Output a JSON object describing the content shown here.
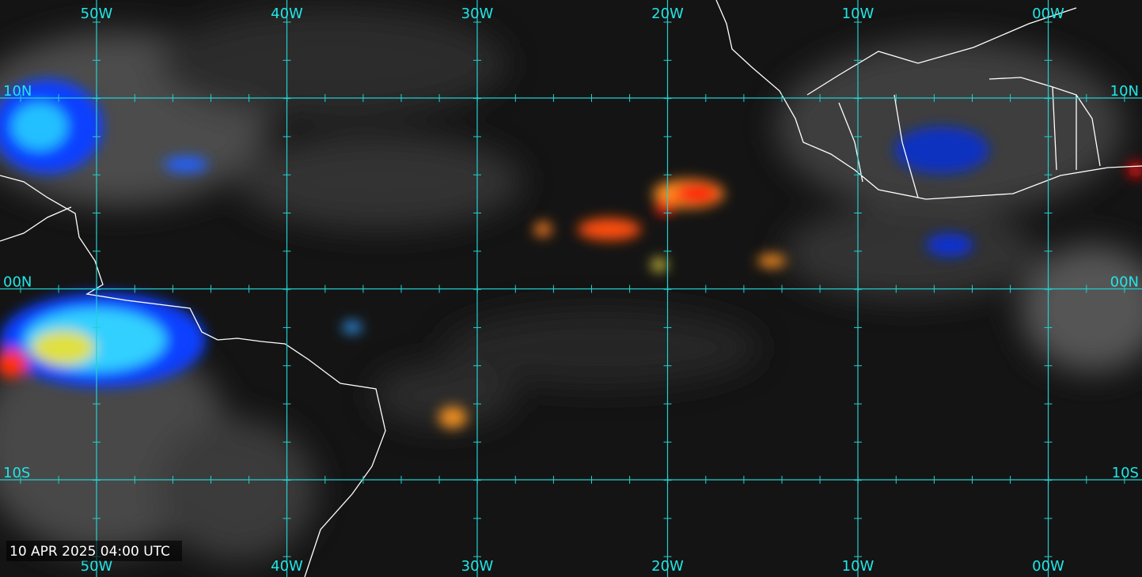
{
  "longitude_labels": [
    "50W",
    "40W",
    "30W",
    "20W",
    "10W",
    "00W"
  ],
  "latitude_labels": [
    "10N",
    "00N",
    "10S"
  ],
  "timestamp": "10 APR 2025 04:00 UTC"
}
